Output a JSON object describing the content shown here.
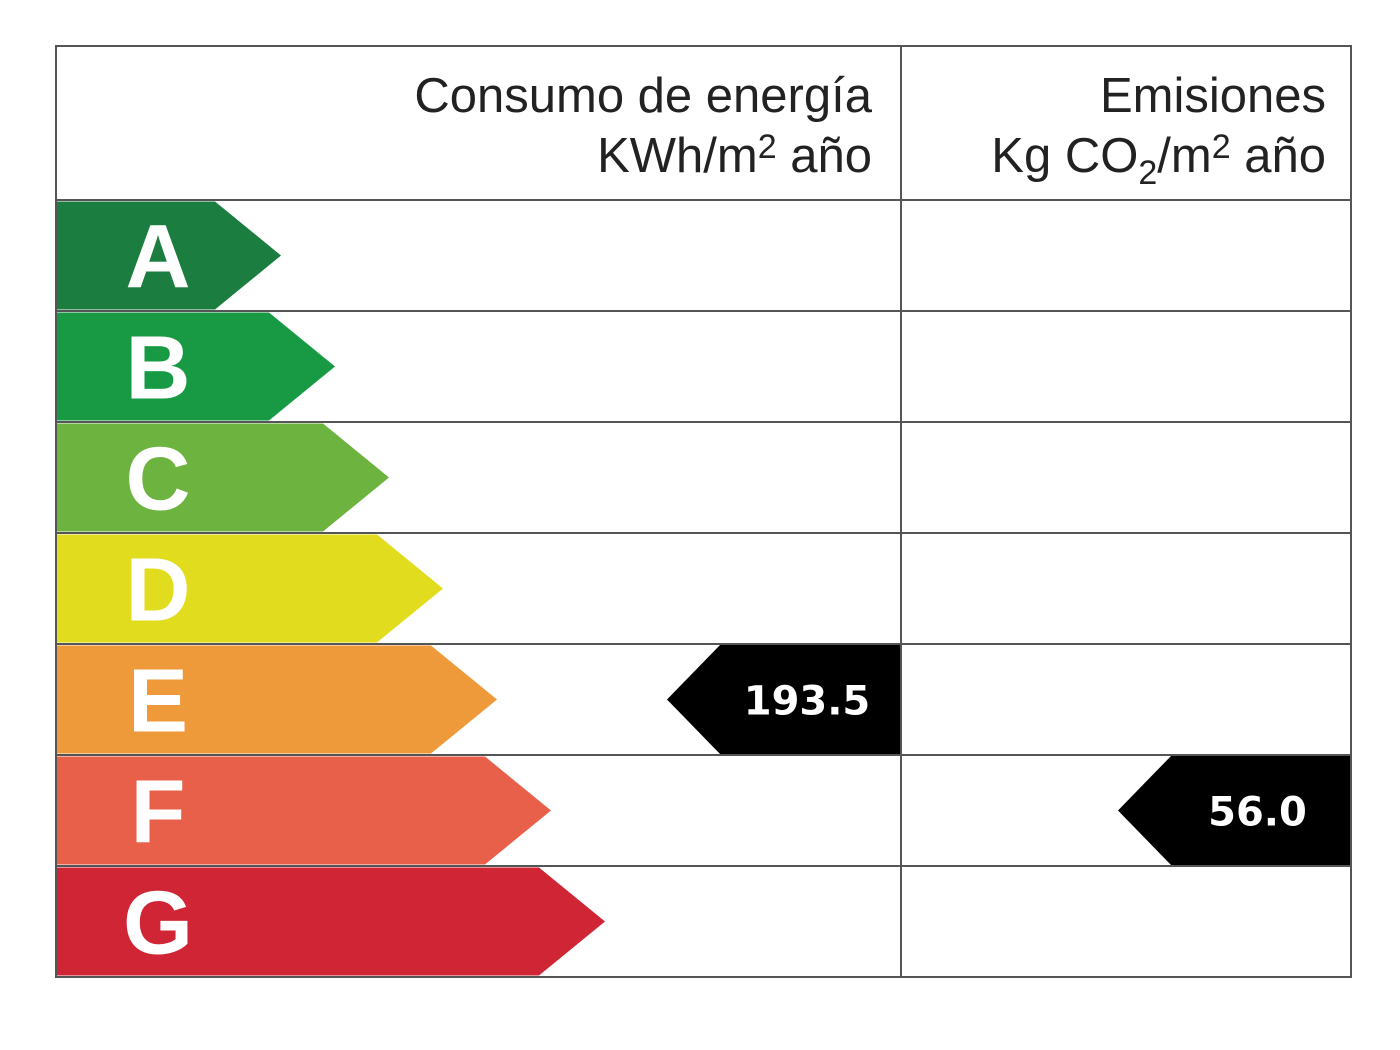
{
  "header": {
    "energy_line1": "Consumo de energía",
    "energy_line2_base": "KWh/m",
    "energy_line2_sup": "2",
    "energy_line2_tail": " año",
    "emissions_line1": "Emisiones",
    "emissions_line2_base": "Kg CO",
    "emissions_line2_sub": "2",
    "emissions_line2_mid": "/m",
    "emissions_line2_sup": "2",
    "emissions_line2_tail": " año"
  },
  "grades": [
    {
      "letter": "A",
      "color": "#1b7d3f"
    },
    {
      "letter": "B",
      "color": "#189a45"
    },
    {
      "letter": "C",
      "color": "#6db33f"
    },
    {
      "letter": "D",
      "color": "#e2dc1f"
    },
    {
      "letter": "E",
      "color": "#ef9a3a"
    },
    {
      "letter": "F",
      "color": "#e8604a"
    },
    {
      "letter": "G",
      "color": "#d02535"
    }
  ],
  "energy_rating": {
    "grade": "E",
    "value": "193.5"
  },
  "emissions_rating": {
    "grade": "F",
    "value": "56.0"
  },
  "indicator_color": "#000000"
}
